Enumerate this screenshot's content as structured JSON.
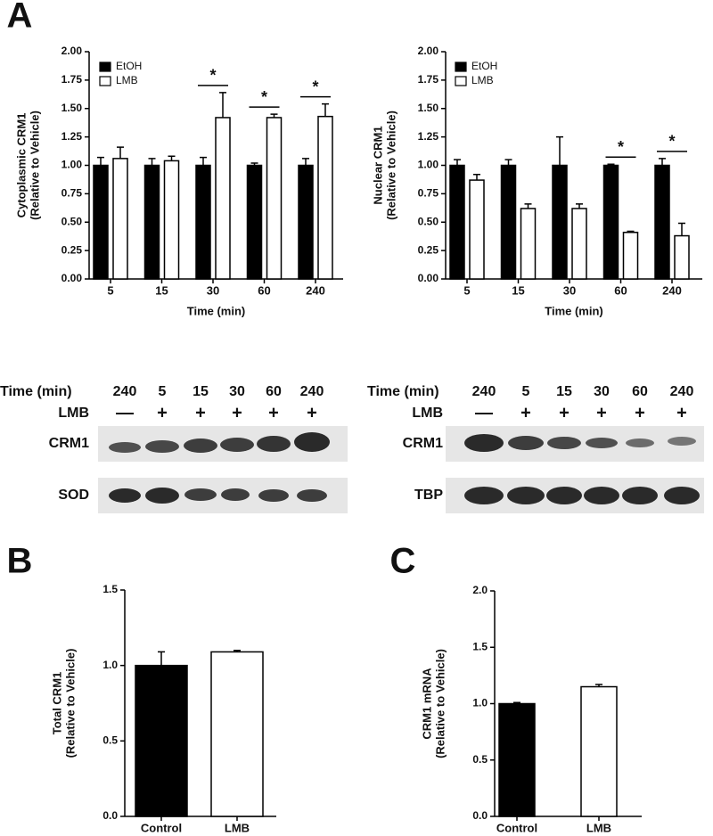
{
  "panels": [
    "A",
    "B",
    "C"
  ],
  "chart_data": [
    {
      "type": "bar",
      "ylabel": [
        "Cytoplasmic CRM1",
        "(Relative to Vehicle)"
      ],
      "xlabel": "Time (min)",
      "categories": [
        "5",
        "15",
        "30",
        "60",
        "240"
      ],
      "series": [
        {
          "name": "EtOH",
          "color": "#000000",
          "values": [
            1.0,
            1.0,
            1.0,
            1.0,
            1.0
          ],
          "errors": [
            0.07,
            0.06,
            0.07,
            0.02,
            0.06
          ]
        },
        {
          "name": "LMB",
          "color": "#ffffff",
          "values": [
            1.06,
            1.04,
            1.42,
            1.42,
            1.43
          ],
          "errors": [
            0.1,
            0.04,
            0.22,
            0.03,
            0.11
          ]
        }
      ],
      "significant": [
        false,
        false,
        true,
        true,
        true
      ],
      "significance_label": "*",
      "legend": "top-left",
      "ylim": [
        0,
        2
      ],
      "yticks": [
        {
          "value": 0,
          "label": "0.00"
        },
        {
          "value": 0.25,
          "label": "0.25"
        },
        {
          "value": 0.5,
          "label": "0.50"
        },
        {
          "value": 0.75,
          "label": "0.75"
        },
        {
          "value": 1,
          "label": "1.00"
        },
        {
          "value": 1.25,
          "label": "1.25"
        },
        {
          "value": 1.5,
          "label": "1.50"
        },
        {
          "value": 1.75,
          "label": "1.75"
        },
        {
          "value": 2,
          "label": "2.00"
        }
      ]
    },
    {
      "type": "bar",
      "ylabel": [
        "Nuclear CRM1",
        "(Relative to Vehicle)"
      ],
      "xlabel": "Time (min)",
      "categories": [
        "5",
        "15",
        "30",
        "60",
        "240"
      ],
      "series": [
        {
          "name": "EtOH",
          "color": "#000000",
          "values": [
            1.0,
            1.0,
            1.0,
            1.0,
            1.0
          ],
          "errors": [
            0.05,
            0.05,
            0.25,
            0.01,
            0.06
          ]
        },
        {
          "name": "LMB",
          "color": "#ffffff",
          "values": [
            0.87,
            0.62,
            0.62,
            0.41,
            0.38
          ],
          "errors": [
            0.05,
            0.04,
            0.04,
            0.01,
            0.11
          ]
        }
      ],
      "significant": [
        false,
        false,
        false,
        true,
        true
      ],
      "significance_label": "*",
      "legend": "top-left",
      "ylim": [
        0,
        2
      ],
      "yticks": [
        {
          "value": 0,
          "label": "0.00"
        },
        {
          "value": 0.25,
          "label": "0.25"
        },
        {
          "value": 0.5,
          "label": "0.50"
        },
        {
          "value": 0.75,
          "label": "0.75"
        },
        {
          "value": 1,
          "label": "1.00"
        },
        {
          "value": 1.25,
          "label": "1.25"
        },
        {
          "value": 1.5,
          "label": "1.50"
        },
        {
          "value": 1.75,
          "label": "1.75"
        },
        {
          "value": 2,
          "label": "2.00"
        }
      ]
    },
    {
      "type": "bar",
      "ylabel": [
        "Total CRM1",
        "(Relative to Vehicle)"
      ],
      "categories": [
        "Control",
        "LMB"
      ],
      "values": [
        1.0,
        1.09
      ],
      "errors": [
        0.09,
        0.01
      ],
      "colors": [
        "#000000",
        "#ffffff"
      ],
      "ylim": [
        0,
        1.5
      ],
      "yticks": [
        {
          "value": 0,
          "label": "0.0"
        },
        {
          "value": 0.5,
          "label": "0.5"
        },
        {
          "value": 1,
          "label": "1.0"
        },
        {
          "value": 1.5,
          "label": "1.5"
        }
      ]
    },
    {
      "type": "bar",
      "ylabel": [
        "CRM1 mRNA",
        "(Relative to Vehicle)"
      ],
      "categories": [
        "Control",
        "LMB"
      ],
      "values": [
        1.0,
        1.15
      ],
      "errors": [
        0.01,
        0.02
      ],
      "colors": [
        "#000000",
        "#ffffff"
      ],
      "ylim": [
        0,
        2
      ],
      "yticks": [
        {
          "value": 0,
          "label": "0.0"
        },
        {
          "value": 0.5,
          "label": "0.5"
        },
        {
          "value": 1,
          "label": "1.0"
        },
        {
          "value": 1.5,
          "label": "1.5"
        },
        {
          "value": 2,
          "label": "2.0"
        }
      ]
    }
  ],
  "blots": [
    {
      "header": "Time (min)",
      "lanes": [
        "240",
        "5",
        "15",
        "30",
        "60",
        "240"
      ],
      "treatment": "LMB",
      "treatment_marks": [
        "—",
        "+",
        "+",
        "+",
        "+",
        "+"
      ],
      "rows": [
        "CRM1",
        "SOD"
      ]
    },
    {
      "header": "Time (min)",
      "lanes": [
        "240",
        "5",
        "15",
        "30",
        "60",
        "240"
      ],
      "treatment": "LMB",
      "treatment_marks": [
        "—",
        "+",
        "+",
        "+",
        "+",
        "+"
      ],
      "rows": [
        "CRM1",
        "TBP"
      ]
    }
  ]
}
